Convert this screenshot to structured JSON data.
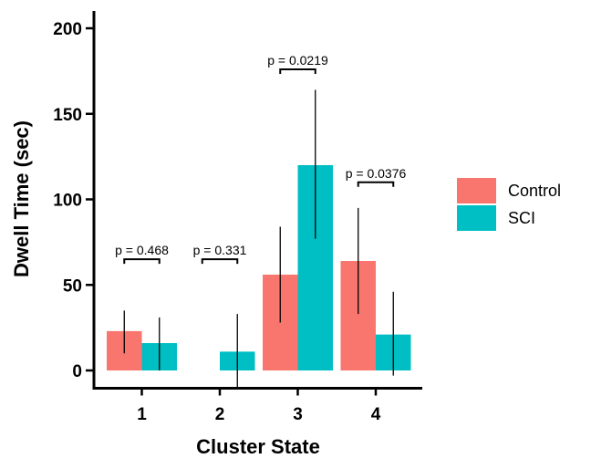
{
  "chart_data": {
    "type": "bar",
    "categories": [
      "1",
      "2",
      "3",
      "4"
    ],
    "xlabel": "Cluster State",
    "ylabel": "Dwell Time (sec)",
    "ylim": [
      -10,
      210
    ],
    "yticks": [
      0,
      50,
      100,
      150,
      200
    ],
    "series": [
      {
        "name": "Control",
        "color": "#F8766D",
        "values": [
          23,
          null,
          56,
          64
        ],
        "error_low": [
          10,
          null,
          28,
          33
        ],
        "error_high": [
          35,
          null,
          84,
          95
        ]
      },
      {
        "name": "SCI",
        "color": "#00BFC4",
        "values": [
          16,
          11,
          120,
          21
        ],
        "error_low": [
          0,
          -10,
          77,
          -3
        ],
        "error_high": [
          31,
          33,
          164,
          46
        ]
      }
    ],
    "annotations": [
      {
        "category": "1",
        "text": "p = 0.468",
        "y": 65
      },
      {
        "category": "2",
        "text": "p = 0.331",
        "y": 65
      },
      {
        "category": "3",
        "text": "p = 0.0219",
        "y": 176
      },
      {
        "category": "4",
        "text": "p = 0.0376",
        "y": 110
      }
    ],
    "legend": {
      "position": "right",
      "entries": [
        "Control",
        "SCI"
      ]
    }
  }
}
